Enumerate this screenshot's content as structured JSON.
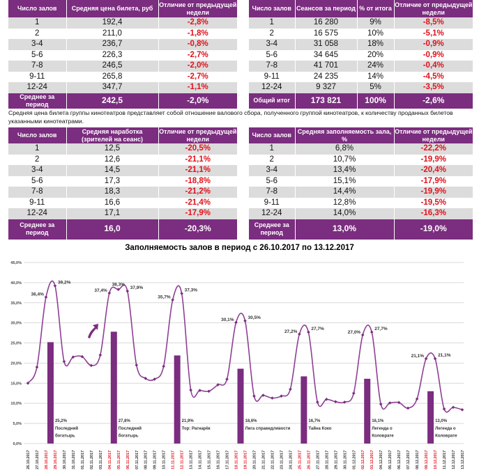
{
  "tables": [
    {
      "headers": [
        "Число залов",
        "Средняя цена билета, руб",
        "Отличие от предыдущей недели"
      ],
      "rows": [
        [
          "1",
          "192,4",
          "-2,8%"
        ],
        [
          "2",
          "211,0",
          "-1,8%"
        ],
        [
          "3-4",
          "236,7",
          "-0,8%"
        ],
        [
          "5-6",
          "226,3",
          "-2,7%"
        ],
        [
          "7-8",
          "246,5",
          "-2,0%"
        ],
        [
          "9-11",
          "265,8",
          "-2,7%"
        ],
        [
          "12-24",
          "347,7",
          "-1,1%"
        ]
      ],
      "total": [
        "Среднее за период",
        "242,5",
        "-2,0%"
      ]
    },
    {
      "headers": [
        "Число залов",
        "Сеансов за период",
        "% от итога",
        "Отличие от предыдущей недели"
      ],
      "rows": [
        [
          "1",
          "16 280",
          "9%",
          "-8,5%"
        ],
        [
          "2",
          "16 575",
          "10%",
          "-5,1%"
        ],
        [
          "3-4",
          "31 058",
          "18%",
          "-0,9%"
        ],
        [
          "5-6",
          "34 645",
          "20%",
          "-0,9%"
        ],
        [
          "7-8",
          "41 701",
          "24%",
          "-0,4%"
        ],
        [
          "9-11",
          "24 235",
          "14%",
          "-4,5%"
        ],
        [
          "12-24",
          "9 327",
          "5%",
          "-3,5%"
        ]
      ],
      "total": [
        "Общий итог",
        "173 821",
        "100%",
        "-2,6%"
      ]
    },
    {
      "headers": [
        "Число залов",
        "Средняя наработка (зрителей на сеанс)",
        "Отличие от предыдущей недели"
      ],
      "rows": [
        [
          "1",
          "12,5",
          "-20,5%"
        ],
        [
          "2",
          "12,6",
          "-21,1%"
        ],
        [
          "3-4",
          "14,5",
          "-21,1%"
        ],
        [
          "5-6",
          "17,3",
          "-18,8%"
        ],
        [
          "7-8",
          "18,3",
          "-21,2%"
        ],
        [
          "9-11",
          "16,6",
          "-21,4%"
        ],
        [
          "12-24",
          "17,1",
          "-17,9%"
        ]
      ],
      "total": [
        "Среднее за период",
        "16,0",
        "-20,3%"
      ]
    },
    {
      "headers": [
        "Число залов",
        "Средняя заполняемость зала, %",
        "Отличие от предыдущей недели"
      ],
      "rows": [
        [
          "1",
          "6,8%",
          "-22,2%"
        ],
        [
          "2",
          "10,7%",
          "-19,9%"
        ],
        [
          "3-4",
          "13,4%",
          "-20,4%"
        ],
        [
          "5-6",
          "15,1%",
          "-17,9%"
        ],
        [
          "7-8",
          "14,4%",
          "-19,9%"
        ],
        [
          "9-11",
          "12,8%",
          "-19,5%"
        ],
        [
          "12-24",
          "14,0%",
          "-16,3%"
        ]
      ],
      "total": [
        "Среднее за период",
        "13,0%",
        "-19,0%"
      ]
    }
  ],
  "note": "Средняя цена билета группы кинотеатров представляет собой отношение валового сбора, полученного группой кинотеатров, к количеству проданных билетов указанными кинотеатрами.",
  "colors": {
    "accent": "#7b2d7f",
    "negative": "#e0121b",
    "row_alt": "#dcdcdc",
    "weekend_label": "#e0121b"
  },
  "chart_data": {
    "type": "line",
    "title": "Заполняемость залов в период с 26.10.2017 по 13.12.2017",
    "ylim": [
      0,
      45
    ],
    "yticks": [
      "0,0%",
      "5,0%",
      "10,0%",
      "15,0%",
      "20,0%",
      "25,0%",
      "30,0%",
      "35,0%",
      "40,0%",
      "45,0%"
    ],
    "grid": true,
    "x": [
      "26.10.2017",
      "27.10.2017",
      "28.10.2017",
      "29.10.2017",
      "30.10.2017",
      "31.10.2017",
      "01.11.2017",
      "02.11.2017",
      "03.11.2017",
      "04.11.2017",
      "05.11.2017",
      "06.11.2017",
      "07.11.2017",
      "08.11.2017",
      "09.11.2017",
      "10.11.2017",
      "11.11.2017",
      "12.11.2017",
      "13.11.2017",
      "14.11.2017",
      "15.11.2017",
      "16.11.2017",
      "17.11.2017",
      "18.11.2017",
      "19.11.2017",
      "20.11.2017",
      "21.11.2017",
      "22.11.2017",
      "23.11.2017",
      "24.11.2017",
      "25.11.2017",
      "26.11.2017",
      "27.11.2017",
      "28.11.2017",
      "29.11.2017",
      "30.11.2017",
      "01.12.2017",
      "02.12.2017",
      "03.12.2017",
      "04.12.2017",
      "05.12.2017",
      "06.12.2017",
      "07.12.2017",
      "08.12.2017",
      "09.12.2017",
      "10.12.2017",
      "11.12.2017",
      "12.12.2017",
      "13.12.2017"
    ],
    "weekend_dates": [
      "28.10.2017",
      "29.10.2017",
      "04.11.2017",
      "05.11.2017",
      "06.11.2017",
      "11.11.2017",
      "12.11.2017",
      "18.11.2017",
      "19.11.2017",
      "25.11.2017",
      "26.11.2017",
      "02.12.2017",
      "03.12.2017",
      "09.12.2017",
      "10.12.2017"
    ],
    "series": [
      {
        "values": [
          15.0,
          19.0,
          36.4,
          39.2,
          20.4,
          21.5,
          21.6,
          19.4,
          22.0,
          37.4,
          38.3,
          37.9,
          19.5,
          16.2,
          16.0,
          19.2,
          35.7,
          37.3,
          13.3,
          13.2,
          13.0,
          14.6,
          16.0,
          30.1,
          30.5,
          11.8,
          12.0,
          11.3,
          11.8,
          13.5,
          27.2,
          27.7,
          10.3,
          11.0,
          10.4,
          10.3,
          12.5,
          27.0,
          27.7,
          9.8,
          10.1,
          10.2,
          8.8,
          11.1,
          21.1,
          21.1,
          8.6,
          9.0,
          8.4
        ],
        "data_labels": {
          "28.10.2017": "36,4%",
          "29.10.2017": "39,2%",
          "04.11.2017": "37,4%",
          "05.11.2017": "38,3%",
          "06.11.2017": "37,9%",
          "11.11.2017": "35,7%",
          "12.11.2017": "37,3%",
          "18.11.2017": "30,1%",
          "19.11.2017": "30,5%",
          "25.11.2017": "27,2%",
          "26.11.2017": "27,7%",
          "02.12.2017": "27,0%",
          "03.12.2017": "27,7%",
          "09.12.2017": "21,1%",
          "10.12.2017": "21,1%"
        }
      }
    ],
    "bars": [
      {
        "x": "28.10.2017",
        "value": 25.2,
        "label": "25,2%",
        "film": [
          "Последний",
          "богатырь"
        ]
      },
      {
        "x": "04.11.2017",
        "value": 27.8,
        "label": "27,8%",
        "film": [
          "Последний",
          "богатырь"
        ]
      },
      {
        "x": "11.11.2017",
        "value": 21.9,
        "label": "21,9%",
        "film": [
          "Тор: Рагнарёк"
        ]
      },
      {
        "x": "18.11.2017",
        "value": 18.6,
        "label": "18,6%",
        "film": [
          "Лига справедливости"
        ]
      },
      {
        "x": "25.11.2017",
        "value": 16.7,
        "label": "16,7%",
        "film": [
          "Тайна Коко"
        ]
      },
      {
        "x": "02.12.2017",
        "value": 16.1,
        "label": "16,1%",
        "film": [
          "Легенда о",
          "Коловрате"
        ]
      },
      {
        "x": "09.12.2017",
        "value": 13.0,
        "label": "13,0%",
        "film": [
          "Легенда о",
          "Коловрате"
        ]
      }
    ],
    "annotation_icon": "curved-up-arrow-icon"
  }
}
